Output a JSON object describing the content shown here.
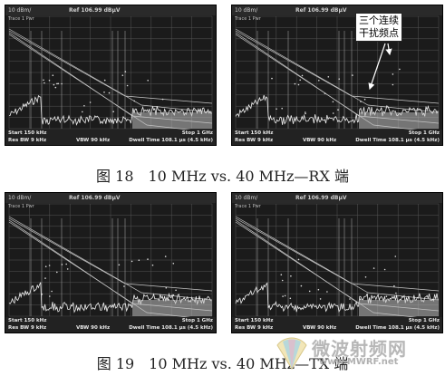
{
  "panel": {
    "level": "10 dBm/",
    "ref": "Ref 106.99 dBµV",
    "trace": "Trace 1 Pwr",
    "start": "Start 150 kHz",
    "stop": "Stop 1 GHz",
    "rbw": "Res BW 9 kHz",
    "vbw": "VBW 90 kHz",
    "dwell": "Dwell Time 108.1 µs (4.5 kHz)"
  },
  "figures": [
    {
      "caption": "图 18　10 MHz vs. 40 MHz—RX 端"
    },
    {
      "caption": "图 19　10 MHz vs. 40 MHz—TX 端"
    }
  ],
  "callout": {
    "line1": "三个连续",
    "line2": "干扰频点"
  },
  "watermark": {
    "text": "微波射频网",
    "url": "www.MWRF.net"
  }
}
